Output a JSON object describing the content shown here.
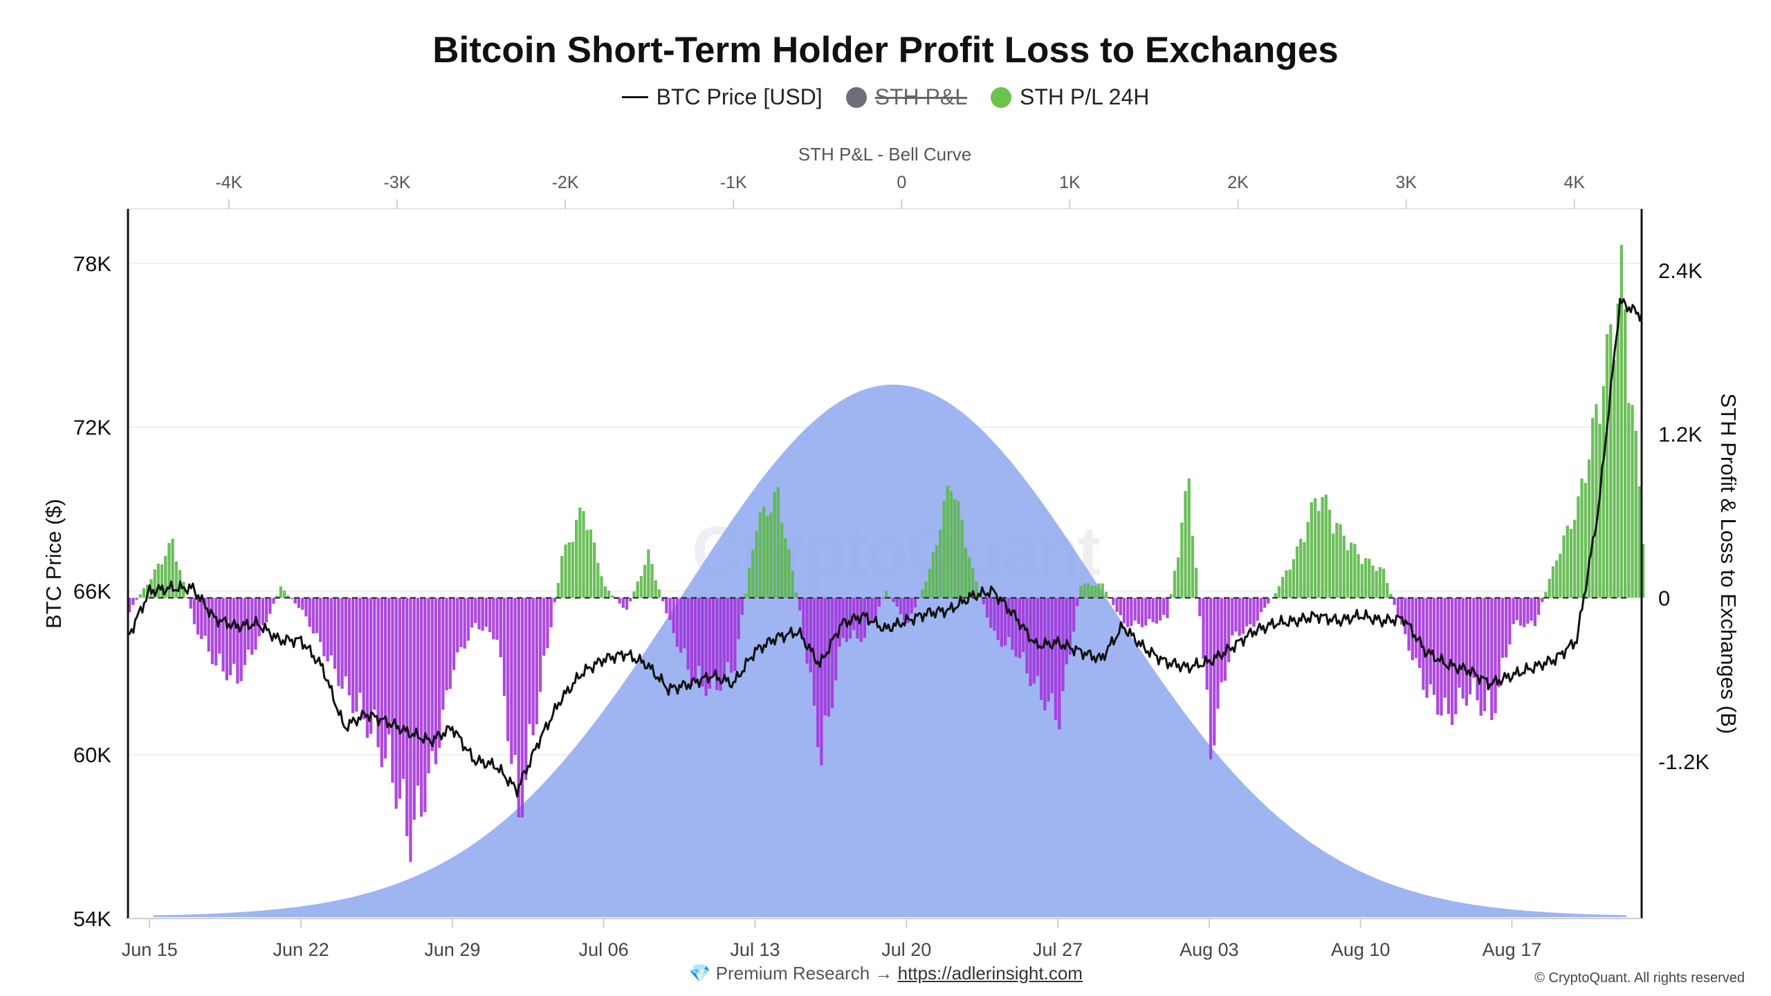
{
  "title": "Bitcoin Short-Term Holder Profit Loss to Exchanges",
  "legend": [
    {
      "label": "BTC Price [USD]",
      "marker": "line",
      "color": "#111111",
      "hidden": false
    },
    {
      "label": "STH P&L",
      "marker": "dot",
      "color": "#6e6e78",
      "hidden": true
    },
    {
      "label": "STH P/L 24H",
      "marker": "dot",
      "color": "#6cc24a",
      "hidden": false
    }
  ],
  "footer": {
    "research_icon": "gem-icon",
    "research_text": "Premium Research →",
    "research_link": "https://adlerinsight.com",
    "copyright": "© CryptoQuant. All rights reserved"
  },
  "watermark": "CryptoQuant",
  "chart_data": {
    "type": "line",
    "colors": {
      "price": "#111111",
      "positive": "#5cb848",
      "negative": "#a534dc",
      "bell": "#8ea8ee"
    },
    "x_axis": {
      "ticks": [
        "Jun 15",
        "Jun 22",
        "Jun 29",
        "Jul 06",
        "Jul 13",
        "Jul 20",
        "Jul 27",
        "Aug 03",
        "Aug 10",
        "Aug 17"
      ],
      "range": [
        "2024-06-14",
        "2024-08-23"
      ]
    },
    "y_left": {
      "label": "BTC Price ($)",
      "ticks": [
        "54K",
        "60K",
        "66K",
        "72K",
        "78K"
      ],
      "range": [
        54000,
        80000
      ]
    },
    "y_right": {
      "label": "STH Profit & Loss to Exchanges (B)",
      "ticks": [
        "-1.2K",
        "0",
        "1.2K",
        "2.4K"
      ],
      "range": [
        -2350,
        2850
      ]
    },
    "x_top": {
      "label": "STH P&L - Bell Curve",
      "ticks": [
        "-4K",
        "-3K",
        "-2K",
        "-1K",
        "0",
        "1K",
        "2K",
        "3K",
        "4K"
      ],
      "range": [
        -4600,
        4400
      ]
    },
    "price_series": {
      "name": "BTC Price [USD]",
      "x": [
        "2024-06-14",
        "2024-06-15",
        "2024-06-16",
        "2024-06-17",
        "2024-06-18",
        "2024-06-19",
        "2024-06-20",
        "2024-06-21",
        "2024-06-22",
        "2024-06-23",
        "2024-06-24",
        "2024-06-25",
        "2024-06-26",
        "2024-06-27",
        "2024-06-28",
        "2024-06-29",
        "2024-06-30",
        "2024-07-01",
        "2024-07-02",
        "2024-07-03",
        "2024-07-04",
        "2024-07-05",
        "2024-07-06",
        "2024-07-07",
        "2024-07-08",
        "2024-07-09",
        "2024-07-10",
        "2024-07-11",
        "2024-07-12",
        "2024-07-13",
        "2024-07-14",
        "2024-07-15",
        "2024-07-16",
        "2024-07-17",
        "2024-07-18",
        "2024-07-19",
        "2024-07-20",
        "2024-07-21",
        "2024-07-22",
        "2024-07-23",
        "2024-07-24",
        "2024-07-25",
        "2024-07-26",
        "2024-07-27",
        "2024-07-28",
        "2024-07-29",
        "2024-07-30",
        "2024-07-31",
        "2024-08-01",
        "2024-08-02",
        "2024-08-03",
        "2024-08-04",
        "2024-08-05",
        "2024-08-06",
        "2024-08-07",
        "2024-08-08",
        "2024-08-09",
        "2024-08-10",
        "2024-08-11",
        "2024-08-12",
        "2024-08-13",
        "2024-08-14",
        "2024-08-15",
        "2024-08-16",
        "2024-08-17",
        "2024-08-18",
        "2024-08-19",
        "2024-08-20",
        "2024-08-21",
        "2024-08-22",
        "2024-08-23"
      ],
      "y": [
        64300,
        66000,
        66100,
        66100,
        65000,
        64700,
        64800,
        64200,
        64200,
        63200,
        61000,
        61500,
        61200,
        60800,
        60500,
        61000,
        59800,
        59600,
        58700,
        60500,
        62000,
        63000,
        63500,
        63700,
        63300,
        62400,
        62600,
        62900,
        62600,
        63800,
        64300,
        64500,
        63300,
        64800,
        65100,
        64600,
        64900,
        65200,
        65300,
        65800,
        66000,
        65100,
        64000,
        64100,
        63800,
        63500,
        64700,
        63900,
        63400,
        63200,
        63400,
        63900,
        64500,
        64800,
        64900,
        65100,
        64900,
        65100,
        64900,
        65000,
        63800,
        63300,
        63100,
        62600,
        62900,
        63200,
        63500,
        64200,
        69000,
        76600,
        76100
      ]
    },
    "pl_series": {
      "name": "STH P/L 24H",
      "x": [
        "2024-06-14",
        "2024-06-15",
        "2024-06-16",
        "2024-06-17",
        "2024-06-18",
        "2024-06-19",
        "2024-06-20",
        "2024-06-21",
        "2024-06-22",
        "2024-06-23",
        "2024-06-24",
        "2024-06-25",
        "2024-06-26",
        "2024-06-27",
        "2024-06-28",
        "2024-06-29",
        "2024-06-30",
        "2024-07-01",
        "2024-07-02",
        "2024-07-03",
        "2024-07-04",
        "2024-07-05",
        "2024-07-06",
        "2024-07-07",
        "2024-07-08",
        "2024-07-09",
        "2024-07-10",
        "2024-07-11",
        "2024-07-12",
        "2024-07-13",
        "2024-07-14",
        "2024-07-15",
        "2024-07-16",
        "2024-07-17",
        "2024-07-18",
        "2024-07-19",
        "2024-07-20",
        "2024-07-21",
        "2024-07-22",
        "2024-07-23",
        "2024-07-24",
        "2024-07-25",
        "2024-07-26",
        "2024-07-27",
        "2024-07-28",
        "2024-07-29",
        "2024-07-30",
        "2024-07-31",
        "2024-08-01",
        "2024-08-02",
        "2024-08-03",
        "2024-08-04",
        "2024-08-05",
        "2024-08-06",
        "2024-08-07",
        "2024-08-08",
        "2024-08-09",
        "2024-08-10",
        "2024-08-11",
        "2024-08-12",
        "2024-08-13",
        "2024-08-14",
        "2024-08-15",
        "2024-08-16",
        "2024-08-17",
        "2024-08-18",
        "2024-08-19",
        "2024-08-20",
        "2024-08-21",
        "2024-08-22",
        "2024-08-23"
      ],
      "y": [
        -100,
        150,
        420,
        -200,
        -500,
        -620,
        -300,
        80,
        -100,
        -400,
        -700,
        -950,
        -1250,
        -1800,
        -1300,
        -500,
        -200,
        -300,
        -1650,
        -700,
        300,
        680,
        80,
        -100,
        330,
        -200,
        -600,
        -700,
        -500,
        560,
        770,
        -100,
        -1200,
        -300,
        -300,
        50,
        -200,
        200,
        900,
        200,
        -300,
        -400,
        -700,
        -900,
        100,
        100,
        -200,
        -200,
        -150,
        900,
        -1150,
        -300,
        -200,
        40,
        350,
        800,
        500,
        300,
        200,
        -300,
        -700,
        -900,
        -700,
        -900,
        -200,
        -200,
        300,
        700,
        1500,
        2400,
        500
      ]
    },
    "bell_curve": {
      "mean": -50,
      "std": 1250,
      "peak": 1560
    }
  }
}
